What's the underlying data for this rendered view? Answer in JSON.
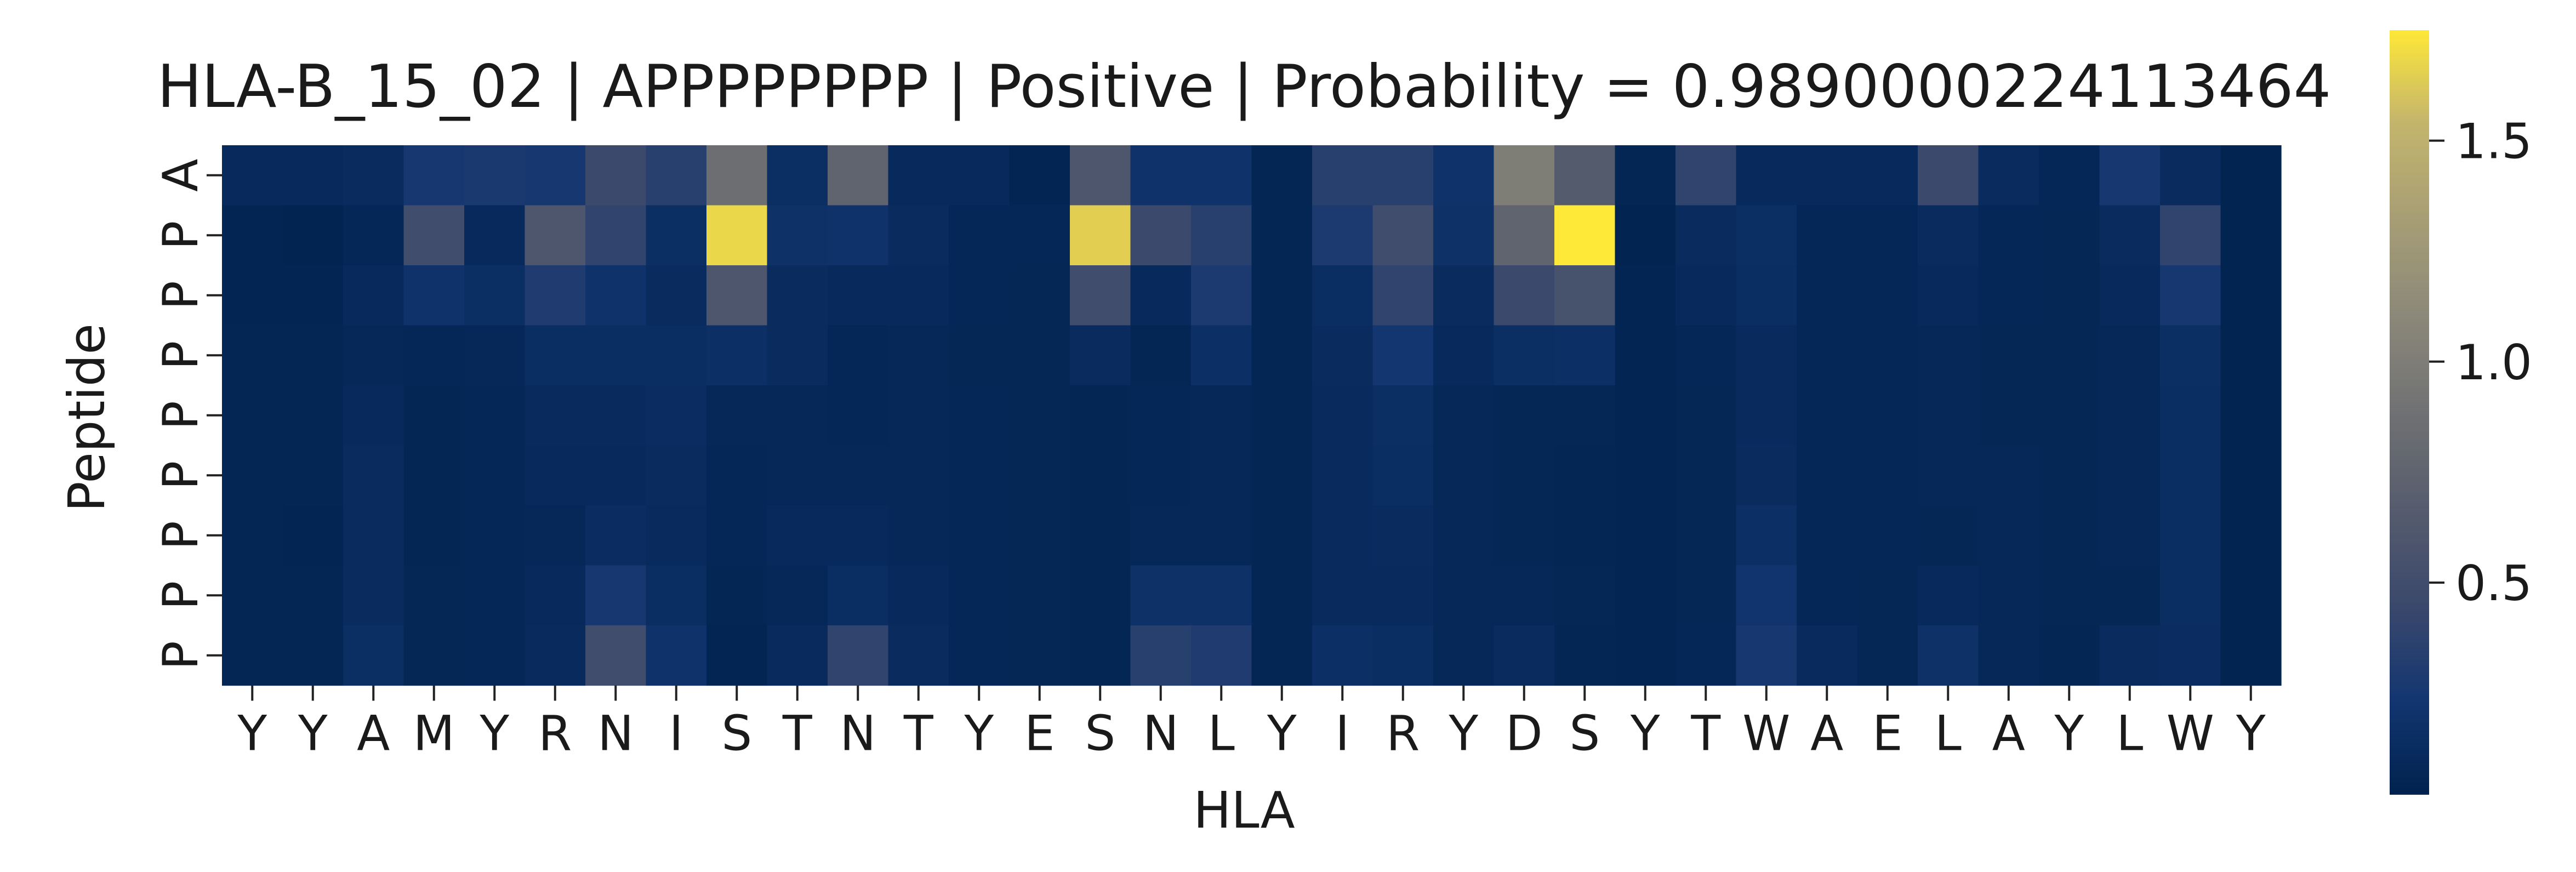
{
  "chart_data": {
    "type": "heatmap",
    "title": "HLA-B_15_02 | APPPPPPPP | Positive | Probability = 0.9890000224113464",
    "xlabel": "HLA",
    "ylabel": "Peptide",
    "x_labels": [
      "Y",
      "Y",
      "A",
      "M",
      "Y",
      "R",
      "N",
      "I",
      "S",
      "T",
      "N",
      "T",
      "Y",
      "E",
      "S",
      "N",
      "L",
      "Y",
      "I",
      "R",
      "Y",
      "D",
      "S",
      "Y",
      "T",
      "W",
      "A",
      "E",
      "L",
      "A",
      "Y",
      "L",
      "W",
      "Y"
    ],
    "y_labels": [
      "A",
      "P",
      "P",
      "P",
      "P",
      "P",
      "P",
      "P",
      "P"
    ],
    "colormap": "cividis",
    "colorbar": {
      "range": [
        0.02,
        1.75
      ],
      "ticks": [
        0.5,
        1.0,
        1.5
      ],
      "tick_labels": [
        "0.5",
        "1.0",
        "1.5"
      ]
    },
    "values": [
      [
        0.1,
        0.1,
        0.12,
        0.25,
        0.27,
        0.25,
        0.45,
        0.35,
        0.85,
        0.15,
        0.75,
        0.1,
        0.1,
        0.05,
        0.6,
        0.2,
        0.2,
        0.06,
        0.35,
        0.35,
        0.2,
        1.0,
        0.65,
        0.06,
        0.4,
        0.1,
        0.1,
        0.1,
        0.45,
        0.12,
        0.08,
        0.25,
        0.12,
        0.04
      ],
      [
        0.05,
        0.04,
        0.08,
        0.5,
        0.1,
        0.6,
        0.4,
        0.15,
        1.68,
        0.18,
        0.2,
        0.12,
        0.08,
        0.08,
        1.65,
        0.45,
        0.35,
        0.06,
        0.28,
        0.5,
        0.18,
        0.75,
        1.75,
        0.04,
        0.12,
        0.15,
        0.08,
        0.08,
        0.12,
        0.08,
        0.07,
        0.12,
        0.4,
        0.04
      ],
      [
        0.05,
        0.05,
        0.1,
        0.2,
        0.15,
        0.3,
        0.2,
        0.12,
        0.6,
        0.12,
        0.1,
        0.1,
        0.08,
        0.07,
        0.5,
        0.1,
        0.28,
        0.06,
        0.14,
        0.4,
        0.12,
        0.45,
        0.55,
        0.05,
        0.1,
        0.14,
        0.08,
        0.08,
        0.1,
        0.08,
        0.07,
        0.1,
        0.25,
        0.04
      ],
      [
        0.06,
        0.06,
        0.09,
        0.08,
        0.09,
        0.14,
        0.14,
        0.14,
        0.16,
        0.12,
        0.08,
        0.09,
        0.07,
        0.07,
        0.12,
        0.06,
        0.16,
        0.06,
        0.12,
        0.24,
        0.1,
        0.15,
        0.16,
        0.05,
        0.08,
        0.11,
        0.08,
        0.08,
        0.09,
        0.07,
        0.07,
        0.09,
        0.15,
        0.04
      ],
      [
        0.06,
        0.06,
        0.1,
        0.06,
        0.08,
        0.11,
        0.11,
        0.13,
        0.09,
        0.09,
        0.08,
        0.09,
        0.08,
        0.07,
        0.06,
        0.08,
        0.09,
        0.06,
        0.11,
        0.15,
        0.09,
        0.07,
        0.07,
        0.05,
        0.07,
        0.11,
        0.08,
        0.08,
        0.09,
        0.07,
        0.07,
        0.09,
        0.14,
        0.04
      ],
      [
        0.06,
        0.06,
        0.12,
        0.06,
        0.08,
        0.1,
        0.1,
        0.12,
        0.08,
        0.09,
        0.09,
        0.09,
        0.08,
        0.07,
        0.06,
        0.08,
        0.09,
        0.06,
        0.11,
        0.14,
        0.09,
        0.07,
        0.06,
        0.05,
        0.07,
        0.12,
        0.08,
        0.08,
        0.09,
        0.09,
        0.07,
        0.09,
        0.14,
        0.04
      ],
      [
        0.06,
        0.05,
        0.12,
        0.06,
        0.08,
        0.09,
        0.13,
        0.11,
        0.08,
        0.1,
        0.1,
        0.09,
        0.08,
        0.07,
        0.06,
        0.09,
        0.09,
        0.06,
        0.11,
        0.12,
        0.09,
        0.07,
        0.06,
        0.05,
        0.07,
        0.16,
        0.08,
        0.08,
        0.07,
        0.09,
        0.07,
        0.09,
        0.14,
        0.04
      ],
      [
        0.06,
        0.06,
        0.12,
        0.07,
        0.08,
        0.1,
        0.25,
        0.14,
        0.06,
        0.09,
        0.14,
        0.1,
        0.08,
        0.07,
        0.06,
        0.18,
        0.18,
        0.06,
        0.11,
        0.11,
        0.09,
        0.09,
        0.07,
        0.05,
        0.07,
        0.22,
        0.08,
        0.07,
        0.1,
        0.09,
        0.07,
        0.07,
        0.14,
        0.04
      ],
      [
        0.06,
        0.06,
        0.15,
        0.07,
        0.08,
        0.11,
        0.5,
        0.2,
        0.05,
        0.11,
        0.4,
        0.12,
        0.08,
        0.07,
        0.06,
        0.35,
        0.3,
        0.06,
        0.16,
        0.14,
        0.09,
        0.12,
        0.06,
        0.05,
        0.08,
        0.25,
        0.11,
        0.07,
        0.18,
        0.09,
        0.06,
        0.12,
        0.13,
        0.04
      ]
    ]
  }
}
